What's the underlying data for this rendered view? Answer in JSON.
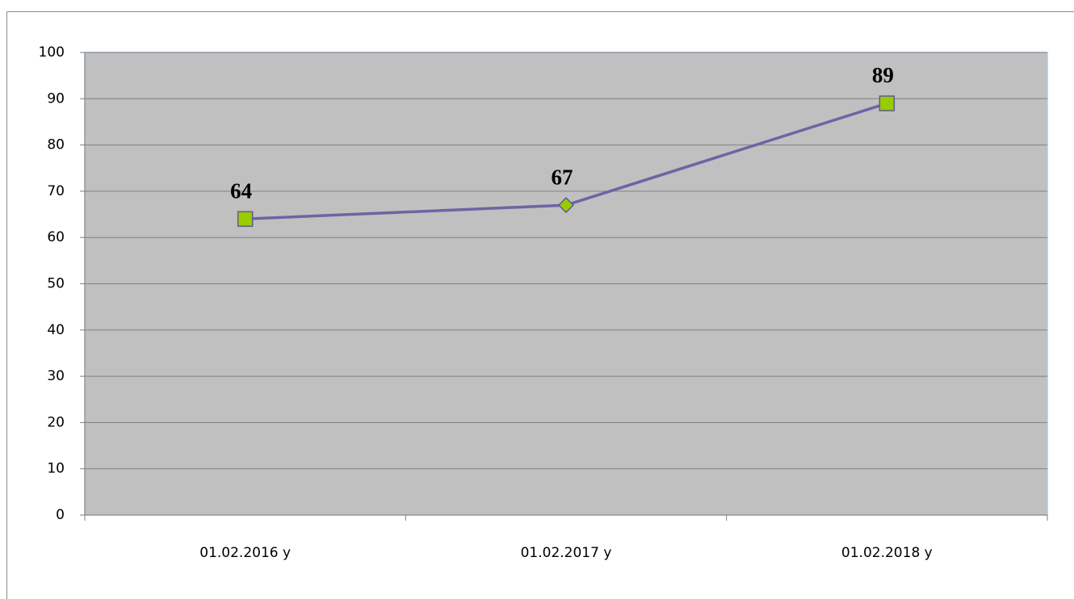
{
  "chart_data": {
    "type": "line",
    "categories": [
      "01.02.2016 y",
      "01.02.2017 y",
      "01.02.2018 y"
    ],
    "values": [
      64,
      67,
      89
    ],
    "color": "#6b66a3",
    "marker_color": "#99cc00",
    "markers": [
      "square",
      "diamond",
      "square"
    ],
    "ylim": [
      0,
      100
    ],
    "yticks": [
      0,
      10,
      20,
      30,
      40,
      50,
      60,
      70,
      80,
      90,
      100
    ],
    "grid": true
  }
}
